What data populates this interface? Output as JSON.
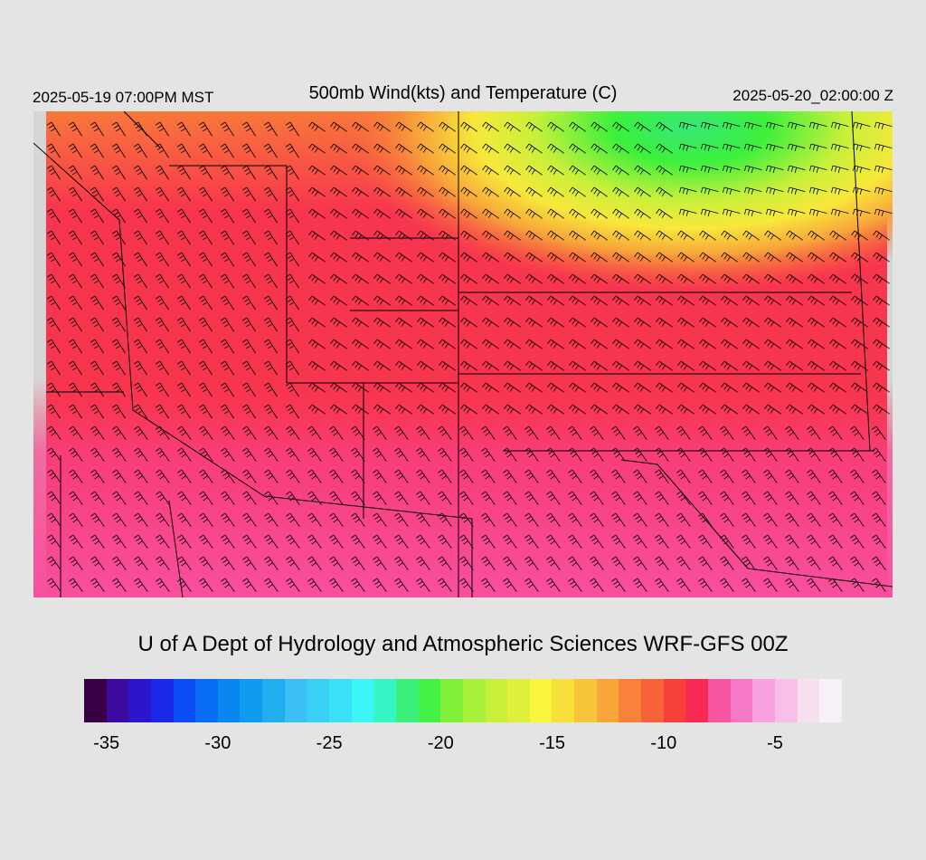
{
  "header": {
    "local_time": "2025-05-19 07:00PM MST",
    "title": "500mb Wind(kts) and Temperature (C)",
    "valid_time": "2025-05-20_02:00:00 Z"
  },
  "credit": "U of A Dept of Hydrology and Atmospheric Sciences WRF-GFS 00Z",
  "colorbar": {
    "colors": [
      "#3a0045",
      "#3b0a9e",
      "#2a16cc",
      "#1a28e8",
      "#0a4df5",
      "#0a6ef5",
      "#0a86f0",
      "#0f9cf0",
      "#21aef0",
      "#3ac0f5",
      "#3ad0f5",
      "#3ae0f8",
      "#3cf5f5",
      "#35f5c5",
      "#3af07a",
      "#45f045",
      "#80f03a",
      "#a8f03a",
      "#c8f03a",
      "#e0f03a",
      "#f8f53a",
      "#f8e03a",
      "#f8c53a",
      "#f8a53a",
      "#f8823a",
      "#f8623a",
      "#f8403a",
      "#f82a55",
      "#f855a0",
      "#f878c8",
      "#f8a0e0",
      "#f8c0e8",
      "#f8dff0",
      "#f8f0f8"
    ],
    "ticks": [
      "-35",
      "-30",
      "-25",
      "-20",
      "-15",
      "-10",
      "-5"
    ]
  },
  "map": {
    "variable": "500mb temperature (C) shaded, wind barbs (kts)",
    "regions": {
      "north_east": "-17 to -19 (green/yellow)",
      "center_north": "-12 to -15 (orange/yellow)",
      "center": "-10 to -8 (red)",
      "south_west": "-7 to -6 (pink)"
    }
  }
}
